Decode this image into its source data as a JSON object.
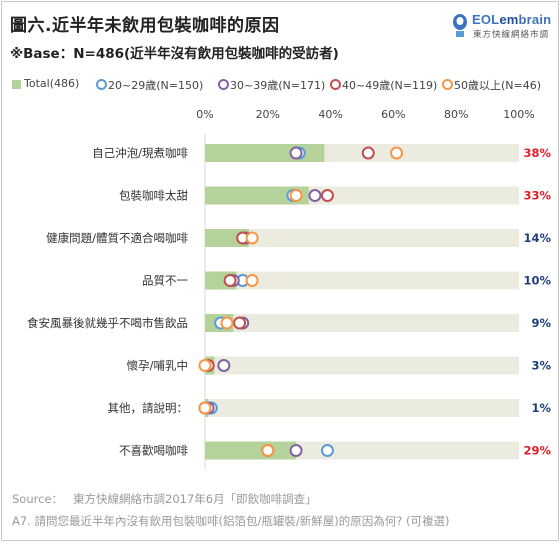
{
  "chart_data": {
    "type": "bar",
    "title": "圖六.近半年未飲用包裝咖啡的原因",
    "subtitle": "※Base：N=486(近半年沒有飲用包裝咖啡的受訪者)",
    "categories": [
      "自己沖泡/現煮咖啡",
      "包裝咖啡太甜",
      "健康問題/體質不適合喝咖啡",
      "品質不一",
      "食安風暴後就幾乎不喝市售飲品",
      "懷孕/哺乳中",
      "其他，請說明：",
      "不喜歡喝咖啡"
    ],
    "value_labels": [
      "38%",
      "33%",
      "14%",
      "10%",
      "9%",
      "3%",
      "1%",
      "29%"
    ],
    "label_colors": [
      "#e0202a",
      "#e0202a",
      "#1f3f7a",
      "#1f3f7a",
      "#1f3f7a",
      "#1f3f7a",
      "#1f3f7a",
      "#e0202a"
    ],
    "x_ticks": [
      "0%",
      "20%",
      "40%",
      "60%",
      "80%",
      "100%"
    ],
    "xlim": [
      0,
      100
    ],
    "series": [
      {
        "name": "Total(486)",
        "kind": "bar",
        "color": "#b5d29a",
        "values": [
          38,
          33,
          14,
          10,
          9,
          3,
          1,
          29
        ]
      },
      {
        "name": "20~29歲(N=150)",
        "kind": "marker",
        "color": "#5b9bd5",
        "values": [
          30,
          28,
          13,
          12,
          5,
          1,
          2,
          39
        ]
      },
      {
        "name": "30~39歲(N=171)",
        "kind": "marker",
        "color": "#8064a2",
        "values": [
          29,
          35,
          13,
          9,
          12,
          6,
          1,
          29
        ]
      },
      {
        "name": "40~49歲(N=119)",
        "kind": "marker",
        "color": "#c0504d",
        "values": [
          52,
          39,
          12,
          8,
          11,
          1,
          0,
          20
        ]
      },
      {
        "name": "50歲以上(N=46)",
        "kind": "marker",
        "color": "#f79646",
        "values": [
          61,
          29,
          15,
          15,
          7,
          0,
          0,
          20
        ]
      }
    ],
    "grid": false
  },
  "footer": {
    "source_label": "Source：",
    "source_text": "東方快線網絡市調2017年6月「即飲咖啡調查」",
    "question": "A7. 請問您最近半年內沒有飲用包裝咖啡(鋁箔包/瓶罐裝/新鮮屋)的原因為何? (可複選)"
  },
  "logo": {
    "text_a": "EOL",
    "text_b": "em",
    "text_c": "brain",
    "sub": "東方快線網絡市調"
  }
}
